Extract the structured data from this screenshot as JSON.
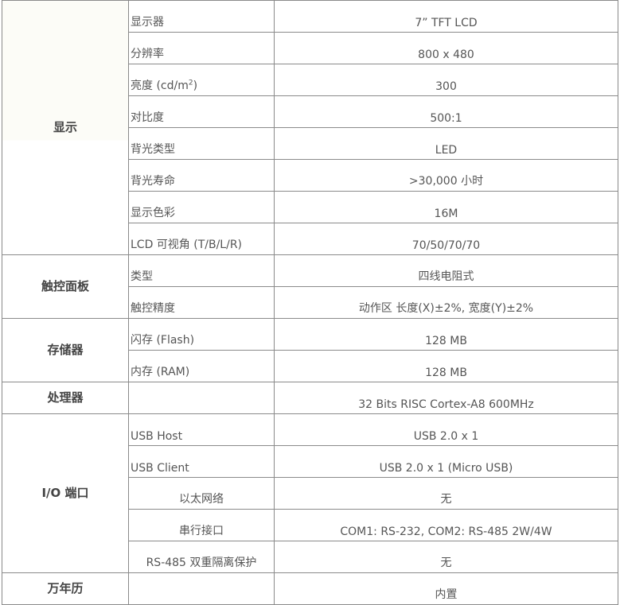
{
  "sections": [
    {
      "category": "显示",
      "rows": [
        {
          "label": "显示器",
          "value": "7”   TFT LCD"
        },
        {
          "label": "分辨率",
          "value": "800 x 480"
        },
        {
          "label": "亮度 (cd/m",
          "label_sup": "2",
          "label_tail": ")",
          "value": "300"
        },
        {
          "label": "对比度",
          "value": "500:1"
        },
        {
          "label": "背光类型",
          "value": "LED"
        },
        {
          "label": "背光寿命",
          "value": ">30,000 小时"
        },
        {
          "label": "显示色彩",
          "value": "16M"
        },
        {
          "label": "LCD 可视角 (T/B/L/R)",
          "value": "70/50/70/70"
        }
      ]
    },
    {
      "category": "触控面板",
      "rows": [
        {
          "label": "类型",
          "value": "四线电阻式"
        },
        {
          "label": "触控精度",
          "value": "动作区 长度(X)±2%, 宽度(Y)±2%"
        }
      ]
    },
    {
      "category": "存储器",
      "rows": [
        {
          "label": "闪存 (Flash)",
          "value": "128 MB"
        },
        {
          "label": "内存 (RAM)",
          "value": "128 MB"
        }
      ]
    },
    {
      "category": "处理器",
      "rows": [
        {
          "label": "",
          "value": "32 Bits RISC Cortex-A8 600MHz"
        }
      ]
    },
    {
      "category": "I/O 端口",
      "rows": [
        {
          "label": "USB Host",
          "value": "USB 2.0 x 1"
        },
        {
          "label": "USB Client",
          "value": "USB 2.0 x 1 (Micro USB)"
        },
        {
          "label": "以太网络",
          "value": "无"
        },
        {
          "label": "串行接口",
          "value": "COM1: RS-232, COM2: RS-485 2W/4W"
        },
        {
          "label": "RS-485 双重隔离保护",
          "value": "无"
        }
      ]
    },
    {
      "category": "万年历",
      "rows": [
        {
          "label": "",
          "value": "内置"
        }
      ]
    }
  ]
}
